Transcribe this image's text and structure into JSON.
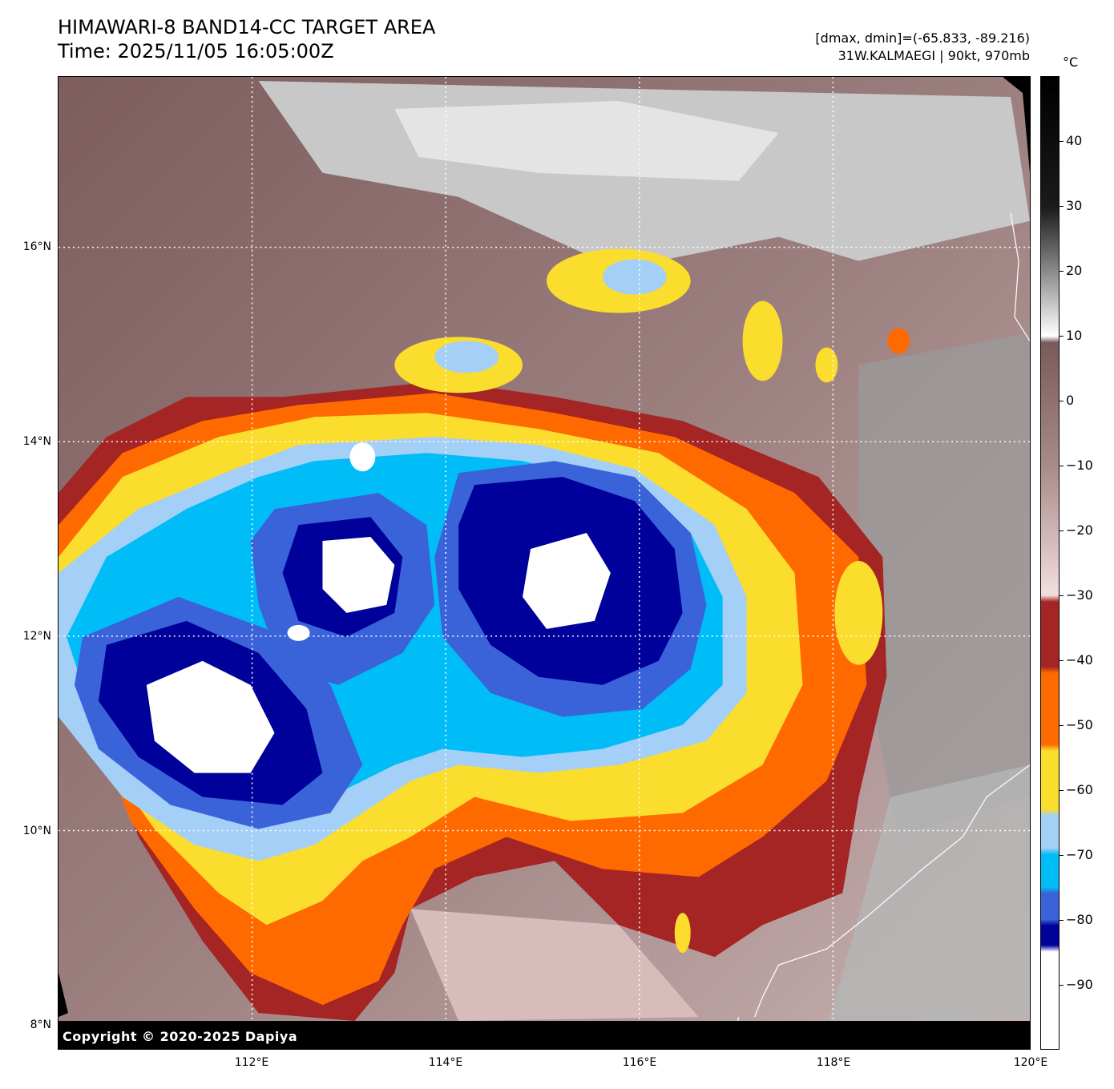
{
  "header": {
    "title_line1": "HIMAWARI-8 BAND14-CC TARGET AREA",
    "title_line2": "Time: 2025/11/05 16:05:00Z",
    "range_text": "[dmax, dmin]=(-65.833, -89.216)",
    "storm_text": "31W.KALMAEGI | 90kt, 970mb"
  },
  "map": {
    "lat_labels": [
      "16°N",
      "14°N",
      "12°N",
      "10°N",
      "8°N"
    ],
    "lon_labels": [
      "112°E",
      "114°E",
      "116°E",
      "118°E",
      "120°E"
    ],
    "copyright": "Copyright © 2020-2025 Dapiya"
  },
  "colorbar": {
    "unit": "°C",
    "tick_labels": [
      "40",
      "30",
      "20",
      "10",
      "0",
      "−10",
      "−20",
      "−30",
      "−40",
      "−50",
      "−60",
      "−70",
      "−80",
      "−90"
    ],
    "stops": [
      {
        "t": 50,
        "color": "#000000"
      },
      {
        "t": 30,
        "color": "#1a1a1a"
      },
      {
        "t": 20,
        "color": "#8a8a8a"
      },
      {
        "t": 10,
        "color": "#ffffff"
      },
      {
        "t": 9,
        "color": "#7a5a5a"
      },
      {
        "t": -10,
        "color": "#a88a8a"
      },
      {
        "t": -30,
        "color": "#f3dede"
      },
      {
        "t": -31,
        "color": "#a52424"
      },
      {
        "t": -41,
        "color": "#a52424"
      },
      {
        "t": -42,
        "color": "#ff6a00"
      },
      {
        "t": -53,
        "color": "#ff6a00"
      },
      {
        "t": -54,
        "color": "#fbdd2d"
      },
      {
        "t": -63,
        "color": "#fbdd2d"
      },
      {
        "t": -64,
        "color": "#a4cff7"
      },
      {
        "t": -69,
        "color": "#a4cff7"
      },
      {
        "t": -70,
        "color": "#00bdf7"
      },
      {
        "t": -75,
        "color": "#00bdf7"
      },
      {
        "t": -76,
        "color": "#3a63da"
      },
      {
        "t": -80,
        "color": "#3a63da"
      },
      {
        "t": -81,
        "color": "#00009a"
      },
      {
        "t": -84,
        "color": "#00009a"
      },
      {
        "t": -85,
        "color": "#ffffff"
      },
      {
        "t": -100,
        "color": "#ffffff"
      }
    ]
  }
}
